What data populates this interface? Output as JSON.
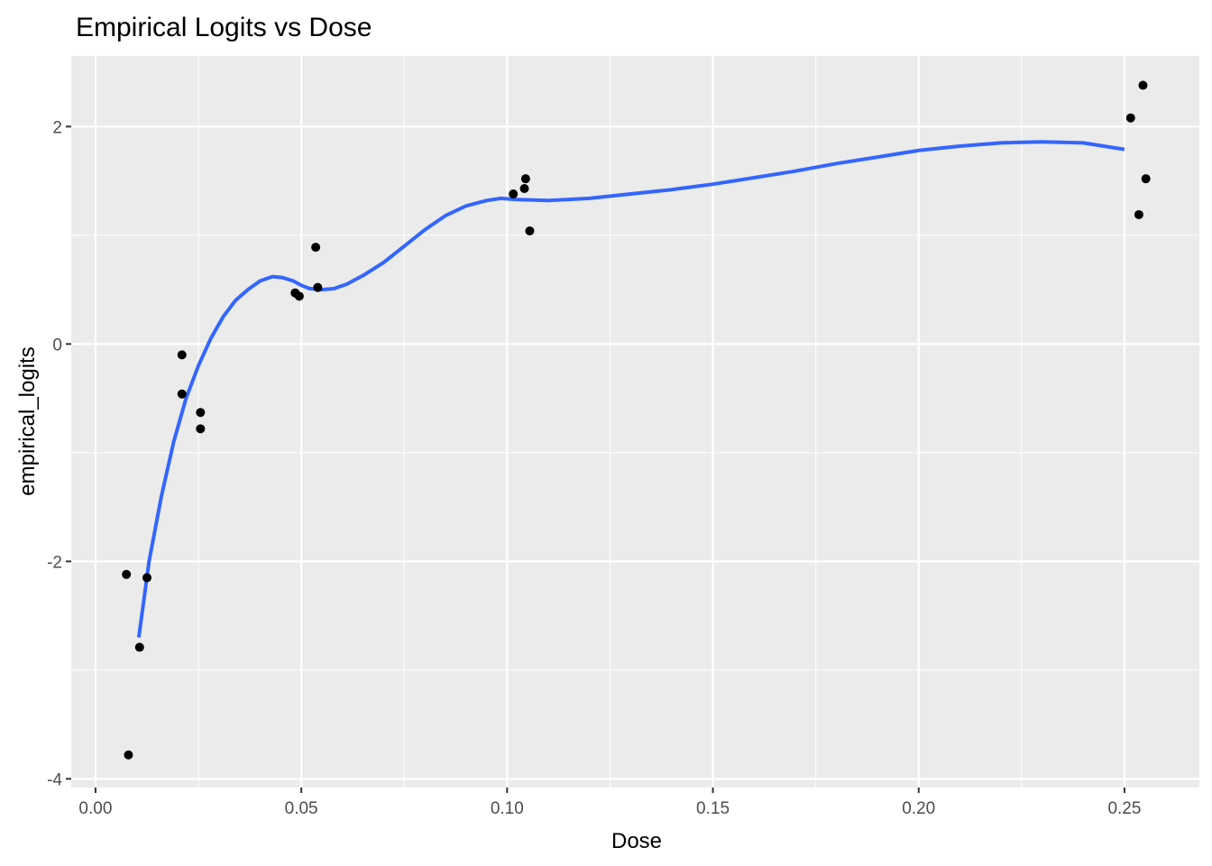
{
  "chart_data": {
    "type": "scatter",
    "title": "Empirical Logits vs Dose",
    "xlabel": "Dose",
    "ylabel": "empirical_logits",
    "xlim": [
      -0.0059,
      0.2682
    ],
    "ylim": [
      -4.08,
      2.65
    ],
    "x_ticks": [
      0.0,
      0.05,
      0.1,
      0.15,
      0.2,
      0.25
    ],
    "x_tick_labels": [
      "0.00",
      "0.05",
      "0.10",
      "0.15",
      "0.20",
      "0.25"
    ],
    "y_ticks": [
      -4,
      -2,
      0,
      2
    ],
    "y_tick_labels": [
      "-4",
      "-2",
      "0",
      "2"
    ],
    "grid": true,
    "background": "#ebebeb",
    "grid_color": "#ffffff",
    "point_color": "#000000",
    "smooth_color": "#3366ff",
    "points": [
      {
        "x": 0.0075,
        "y": -2.12
      },
      {
        "x": 0.008,
        "y": -3.78
      },
      {
        "x": 0.0107,
        "y": -2.79
      },
      {
        "x": 0.0125,
        "y": -2.15
      },
      {
        "x": 0.021,
        "y": -0.1
      },
      {
        "x": 0.021,
        "y": -0.46
      },
      {
        "x": 0.0255,
        "y": -0.63
      },
      {
        "x": 0.0255,
        "y": -0.78
      },
      {
        "x": 0.0485,
        "y": 0.47
      },
      {
        "x": 0.0495,
        "y": 0.44
      },
      {
        "x": 0.0535,
        "y": 0.89
      },
      {
        "x": 0.054,
        "y": 0.52
      },
      {
        "x": 0.1015,
        "y": 1.38
      },
      {
        "x": 0.1042,
        "y": 1.43
      },
      {
        "x": 0.1045,
        "y": 1.52
      },
      {
        "x": 0.1055,
        "y": 1.04
      },
      {
        "x": 0.2515,
        "y": 2.08
      },
      {
        "x": 0.2535,
        "y": 1.19
      },
      {
        "x": 0.2545,
        "y": 2.38
      },
      {
        "x": 0.2552,
        "y": 1.52
      }
    ],
    "smooth": {
      "x": [
        0.0105,
        0.013,
        0.016,
        0.019,
        0.022,
        0.025,
        0.028,
        0.031,
        0.034,
        0.037,
        0.04,
        0.043,
        0.0455,
        0.048,
        0.05,
        0.052,
        0.055,
        0.058,
        0.061,
        0.065,
        0.07,
        0.075,
        0.08,
        0.085,
        0.09,
        0.095,
        0.0985,
        0.102,
        0.11,
        0.12,
        0.13,
        0.14,
        0.15,
        0.16,
        0.17,
        0.18,
        0.19,
        0.2,
        0.21,
        0.22,
        0.23,
        0.24,
        0.25
      ],
      "y": [
        -2.7,
        -2.0,
        -1.4,
        -0.9,
        -0.5,
        -0.2,
        0.05,
        0.25,
        0.4,
        0.5,
        0.58,
        0.62,
        0.61,
        0.58,
        0.54,
        0.51,
        0.5,
        0.51,
        0.55,
        0.63,
        0.75,
        0.9,
        1.05,
        1.18,
        1.27,
        1.32,
        1.34,
        1.33,
        1.32,
        1.34,
        1.38,
        1.42,
        1.47,
        1.53,
        1.59,
        1.66,
        1.72,
        1.78,
        1.82,
        1.85,
        1.86,
        1.85,
        1.79
      ]
    }
  }
}
